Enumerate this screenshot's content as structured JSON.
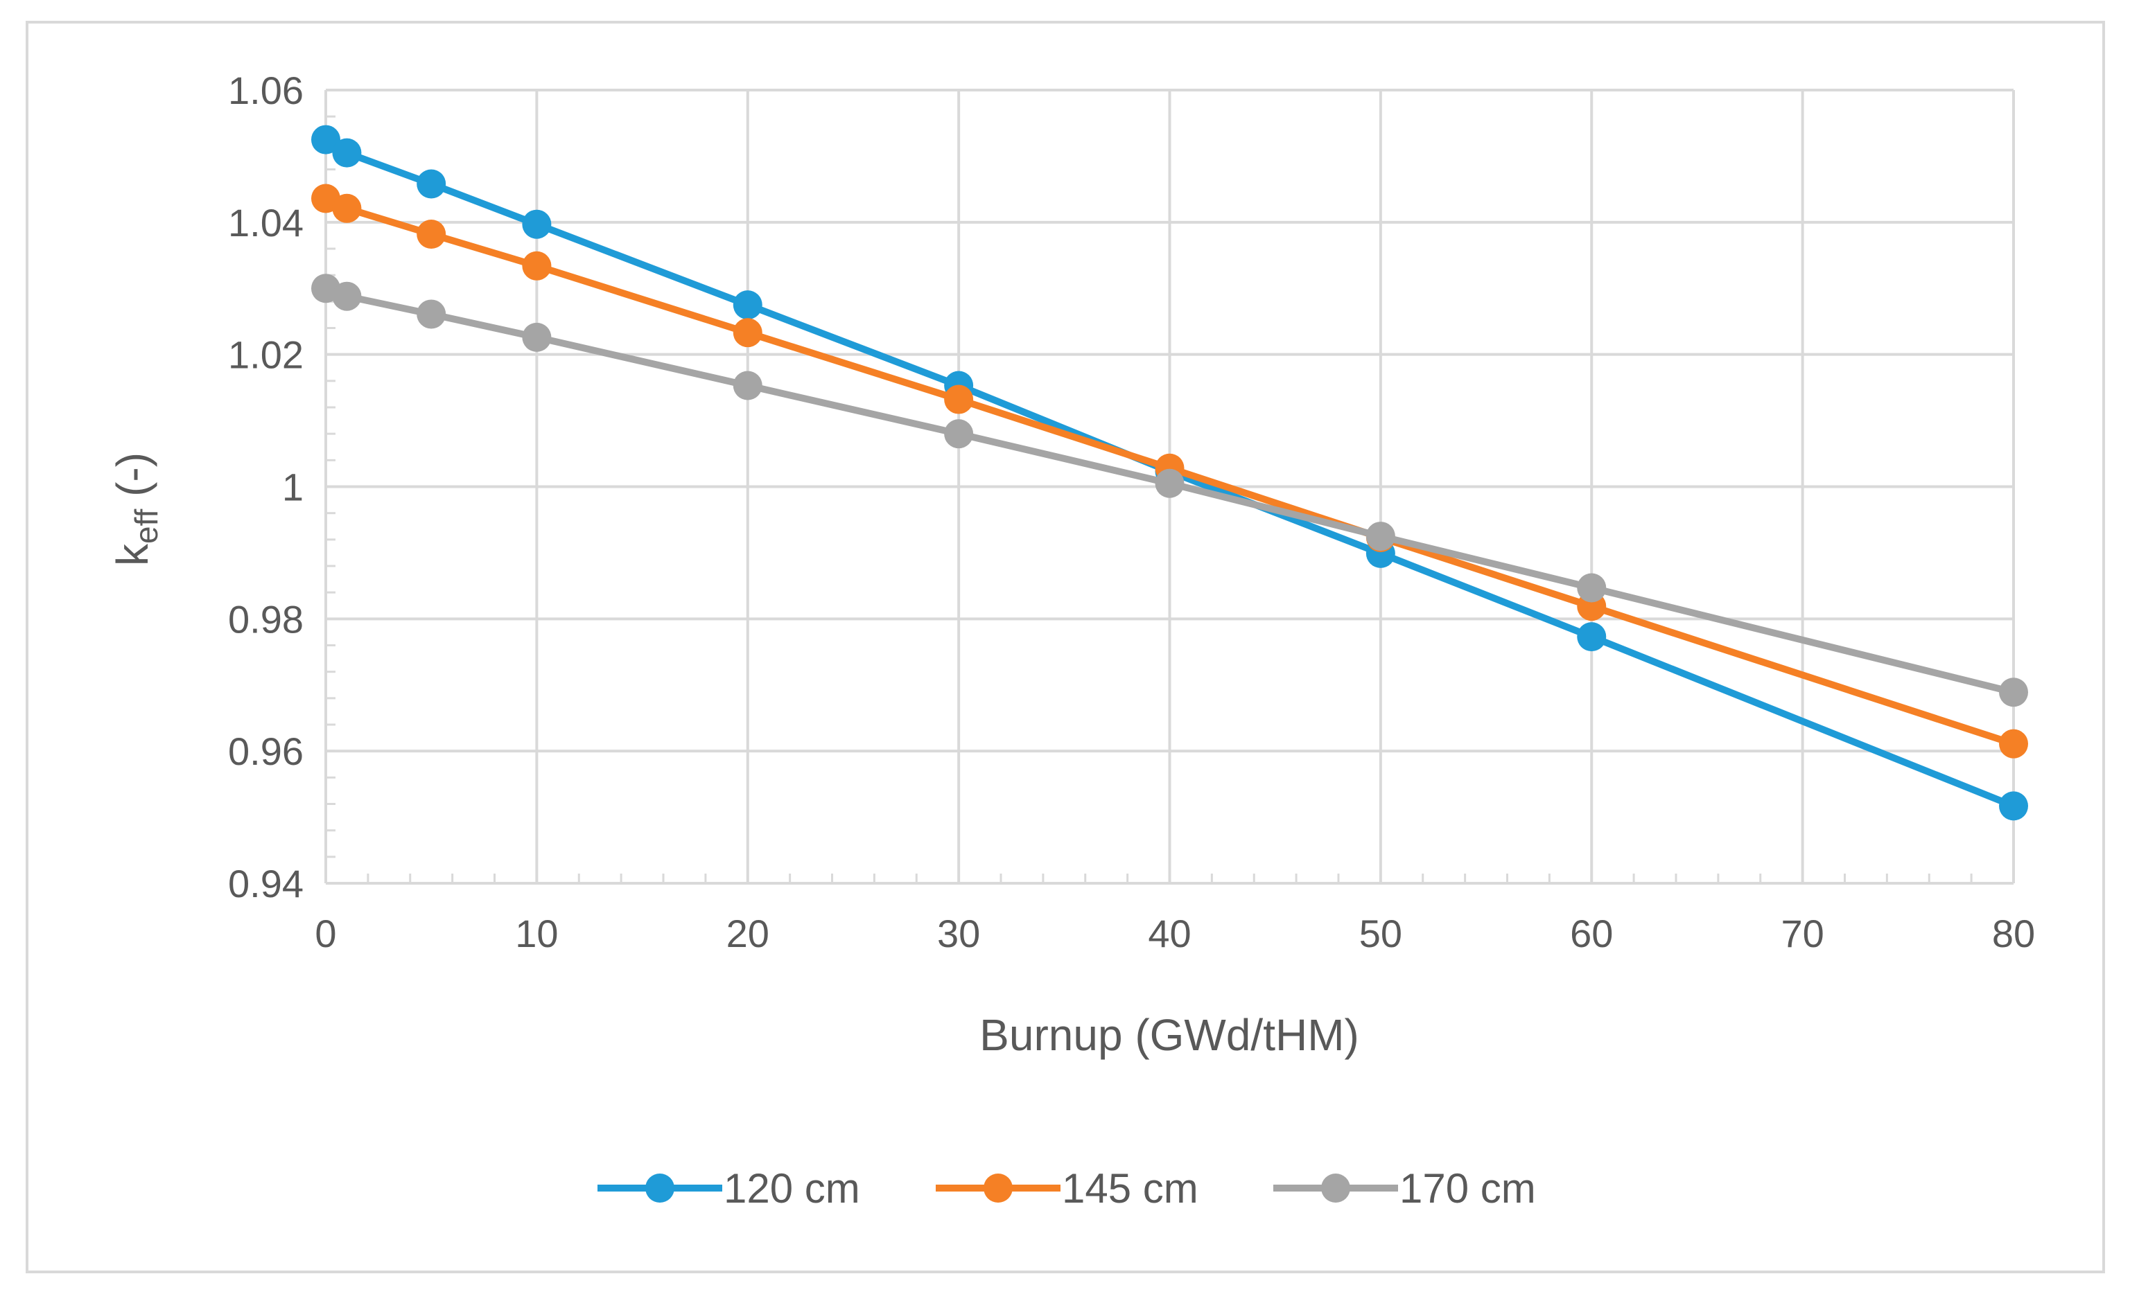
{
  "chart_data": {
    "type": "line",
    "title": "",
    "xlabel": "Burnup (GWd/tHM)",
    "ylabel": {
      "base": "k",
      "subscript": "eff",
      "suffix": " (-)"
    },
    "xlim": [
      0,
      80
    ],
    "ylim": [
      0.94,
      1.06
    ],
    "x_ticks": [
      {
        "value": 0,
        "label": "0"
      },
      {
        "value": 10,
        "label": "10"
      },
      {
        "value": 20,
        "label": "20"
      },
      {
        "value": 30,
        "label": "30"
      },
      {
        "value": 40,
        "label": "40"
      },
      {
        "value": 50,
        "label": "50"
      },
      {
        "value": 60,
        "label": "60"
      },
      {
        "value": 70,
        "label": "70"
      },
      {
        "value": 80,
        "label": "80"
      }
    ],
    "y_ticks": [
      {
        "value": 0.94,
        "label": "0.94"
      },
      {
        "value": 0.96,
        "label": "0.96"
      },
      {
        "value": 0.98,
        "label": "0.98"
      },
      {
        "value": 1.0,
        "label": "1"
      },
      {
        "value": 1.02,
        "label": "1.02"
      },
      {
        "value": 1.04,
        "label": "1.04"
      },
      {
        "value": 1.06,
        "label": "1.06"
      }
    ],
    "grid": true,
    "legend_position": "bottom",
    "series": [
      {
        "name": "120 cm",
        "color": "#1f9bd7",
        "x": [
          0,
          1,
          5,
          10,
          20,
          30,
          40,
          50,
          60,
          80
        ],
        "y": [
          1.0525,
          1.0505,
          1.0458,
          1.0397,
          1.0275,
          1.0153,
          1.0023,
          0.9899,
          0.9773,
          0.9517
        ]
      },
      {
        "name": "145 cm",
        "color": "#f58025",
        "x": [
          0,
          1,
          5,
          10,
          20,
          30,
          40,
          50,
          60,
          80
        ],
        "y": [
          1.0436,
          1.0421,
          1.0382,
          1.0334,
          1.0233,
          1.0132,
          1.0028,
          0.9923,
          0.9819,
          0.9611
        ]
      },
      {
        "name": "170 cm",
        "color": "#a5a5a5",
        "x": [
          0,
          1,
          5,
          10,
          20,
          30,
          40,
          50,
          60,
          80
        ],
        "y": [
          1.03,
          1.0288,
          1.0261,
          1.0226,
          1.0153,
          1.008,
          1.0005,
          0.9925,
          0.9847,
          0.9689
        ]
      }
    ]
  }
}
